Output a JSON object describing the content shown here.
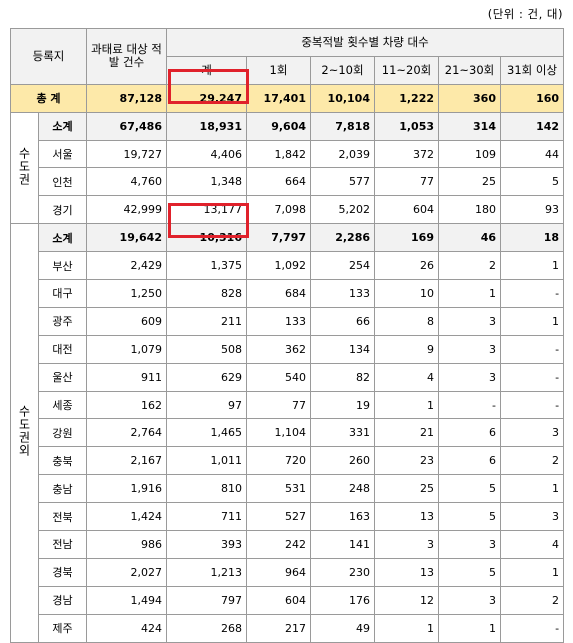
{
  "unit_note": "(단위 : 건, 대)",
  "headers": {
    "region": "등록지",
    "fine_cases": "과태료 대상 적발 건수",
    "group": "중복적발 횟수별 차량 대수",
    "cols": [
      "계",
      "1회",
      "2~10회",
      "11~20회",
      "21~30회",
      "31회 이상"
    ]
  },
  "total": {
    "label": "총 계",
    "values": [
      "87,128",
      "29,247",
      "17,401",
      "10,104",
      "1,222",
      "360",
      "160"
    ]
  },
  "groups": [
    {
      "name": "수도권",
      "subtotal": {
        "label": "소계",
        "values": [
          "67,486",
          "18,931",
          "9,604",
          "7,818",
          "1,053",
          "314",
          "142"
        ]
      },
      "rows": [
        {
          "label": "서울",
          "values": [
            "19,727",
            "4,406",
            "1,842",
            "2,039",
            "372",
            "109",
            "44"
          ]
        },
        {
          "label": "인천",
          "values": [
            "4,760",
            "1,348",
            "664",
            "577",
            "77",
            "25",
            "5"
          ]
        },
        {
          "label": "경기",
          "values": [
            "42,999",
            "13,177",
            "7,098",
            "5,202",
            "604",
            "180",
            "93"
          ]
        }
      ]
    },
    {
      "name": "수도권외",
      "subtotal": {
        "label": "소계",
        "values": [
          "19,642",
          "10,316",
          "7,797",
          "2,286",
          "169",
          "46",
          "18"
        ]
      },
      "rows": [
        {
          "label": "부산",
          "values": [
            "2,429",
            "1,375",
            "1,092",
            "254",
            "26",
            "2",
            "1"
          ]
        },
        {
          "label": "대구",
          "values": [
            "1,250",
            "828",
            "684",
            "133",
            "10",
            "1",
            "-"
          ]
        },
        {
          "label": "광주",
          "values": [
            "609",
            "211",
            "133",
            "66",
            "8",
            "3",
            "1"
          ]
        },
        {
          "label": "대전",
          "values": [
            "1,079",
            "508",
            "362",
            "134",
            "9",
            "3",
            "-"
          ]
        },
        {
          "label": "울산",
          "values": [
            "911",
            "629",
            "540",
            "82",
            "4",
            "3",
            "-"
          ]
        },
        {
          "label": "세종",
          "values": [
            "162",
            "97",
            "77",
            "19",
            "1",
            "-",
            "-"
          ]
        },
        {
          "label": "강원",
          "values": [
            "2,764",
            "1,465",
            "1,104",
            "331",
            "21",
            "6",
            "3"
          ]
        },
        {
          "label": "충북",
          "values": [
            "2,167",
            "1,011",
            "720",
            "260",
            "23",
            "6",
            "2"
          ]
        },
        {
          "label": "충남",
          "values": [
            "1,916",
            "810",
            "531",
            "248",
            "25",
            "5",
            "1"
          ]
        },
        {
          "label": "전북",
          "values": [
            "1,424",
            "711",
            "527",
            "163",
            "13",
            "5",
            "3"
          ]
        },
        {
          "label": "전남",
          "values": [
            "986",
            "393",
            "242",
            "141",
            "3",
            "3",
            "4"
          ]
        },
        {
          "label": "경북",
          "values": [
            "2,027",
            "1,213",
            "964",
            "230",
            "13",
            "5",
            "1"
          ]
        },
        {
          "label": "경남",
          "values": [
            "1,494",
            "797",
            "604",
            "176",
            "12",
            "3",
            "2"
          ]
        },
        {
          "label": "제주",
          "values": [
            "424",
            "268",
            "217",
            "49",
            "1",
            "1",
            "-"
          ]
        }
      ]
    }
  ],
  "highlight_color": "#e0212b"
}
